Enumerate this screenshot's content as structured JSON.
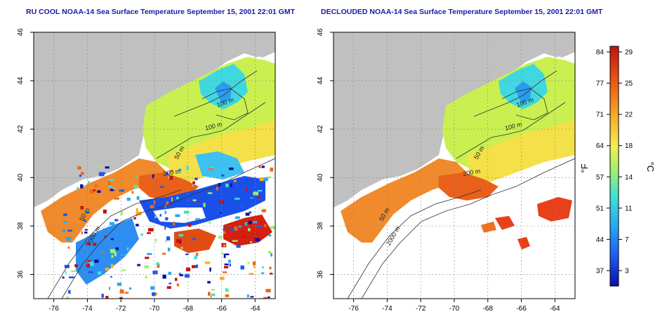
{
  "maps": [
    {
      "title": "RU COOL NOAA-14 Sea Surface Temperature September 15, 2001 22:01 GMT",
      "variant": "cloudy",
      "contour_labels": [
        "100 m",
        "100 m",
        "50 m",
        "200 m",
        "50 m",
        "2000 m"
      ]
    },
    {
      "title": "DECLOUDED NOAA-14 Sea Surface Temperature September 15, 2001 22:01 GMT",
      "variant": "declouded",
      "contour_labels": [
        "100 m",
        "100 m",
        "50 m",
        "200 m",
        "50 m",
        "2000 m"
      ]
    }
  ],
  "axes": {
    "x_ticks": [
      "-76",
      "-74",
      "-72",
      "-70",
      "-68",
      "-66",
      "-64"
    ],
    "y_ticks": [
      "36",
      "38",
      "40",
      "42",
      "44",
      "46"
    ],
    "lon_range": [
      -77.2,
      -62.8
    ],
    "lat_range": [
      35,
      46
    ],
    "grid": "dotted"
  },
  "colorbar": {
    "fahrenheit_label": "°F",
    "celsius_label": "°C",
    "fahrenheit_ticks": [
      "84",
      "77",
      "71",
      "64",
      "57",
      "51",
      "44",
      "37"
    ],
    "celsius_ticks": [
      "29",
      "25",
      "22",
      "18",
      "14",
      "11",
      "7",
      "3"
    ],
    "colors": [
      "#0a10a8",
      "#1e58f0",
      "#27a8f2",
      "#3ee0d8",
      "#9ef070",
      "#f0f050",
      "#f8b028",
      "#f06a14",
      "#c81010"
    ]
  },
  "colors": {
    "land": "#c0c0c0",
    "water_clear": "#ffffff",
    "title": "#1a1aa8"
  }
}
